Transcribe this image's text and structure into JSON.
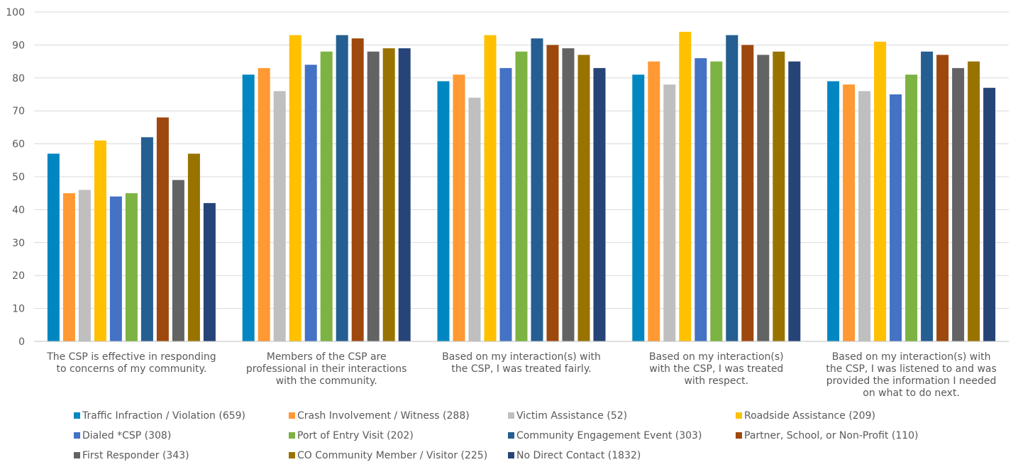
{
  "chart_data": {
    "type": "bar",
    "title": "",
    "xlabel": "",
    "ylabel": "",
    "ylim": [
      0,
      100
    ],
    "yticks": [
      0,
      10,
      20,
      30,
      40,
      50,
      60,
      70,
      80,
      90,
      100
    ],
    "grid": true,
    "legend_position": "bottom",
    "categories": [
      [
        "The CSP is effective in responding",
        "to concerns of my community."
      ],
      [
        "Members of the CSP are",
        "professional in their interactions",
        "with the community."
      ],
      [
        "Based on my interaction(s) with",
        "the CSP, I was treated fairly."
      ],
      [
        "Based on my interaction(s)",
        "with the CSP, I was treated",
        "with respect."
      ],
      [
        "Based on my interaction(s) with",
        "the CSP, I was listened to and was",
        "provided the information I needed",
        "on what to do next."
      ]
    ],
    "series": [
      {
        "name": "Traffic Infraction / Violation (659)",
        "color": "#0087C1",
        "values": [
          57,
          81,
          79,
          81,
          79
        ]
      },
      {
        "name": "Crash Involvement / Witness (288)",
        "color": "#FF9933",
        "values": [
          45,
          83,
          81,
          85,
          78
        ]
      },
      {
        "name": "Victim Assistance (52)",
        "color": "#BFBFBF",
        "values": [
          46,
          76,
          74,
          78,
          76
        ]
      },
      {
        "name": "Roadside Assistance (209)",
        "color": "#FFC000",
        "values": [
          61,
          93,
          93,
          94,
          91
        ]
      },
      {
        "name": "Dialed *CSP (308)",
        "color": "#4472C4",
        "values": [
          44,
          84,
          83,
          86,
          75
        ]
      },
      {
        "name": "Port of Entry Visit (202)",
        "color": "#7CB342",
        "values": [
          45,
          88,
          88,
          85,
          81
        ]
      },
      {
        "name": "Community Engagement Event (303)",
        "color": "#255E91",
        "values": [
          62,
          93,
          92,
          93,
          88
        ]
      },
      {
        "name": "Partner, School, or Non-Profit (110)",
        "color": "#9E480E",
        "values": [
          68,
          92,
          90,
          90,
          87
        ]
      },
      {
        "name": "First Responder (343)",
        "color": "#636363",
        "values": [
          49,
          88,
          89,
          87,
          83
        ]
      },
      {
        "name": "CO Community Member / Visitor (225)",
        "color": "#997300",
        "values": [
          57,
          89,
          87,
          88,
          85
        ]
      },
      {
        "name": "No Direct Contact (1832)",
        "color": "#264478",
        "values": [
          42,
          89,
          83,
          85,
          77
        ]
      }
    ],
    "grid_color": "#D9D9D9",
    "axis_color": "#BFBFBF",
    "text_color": "#595959"
  }
}
